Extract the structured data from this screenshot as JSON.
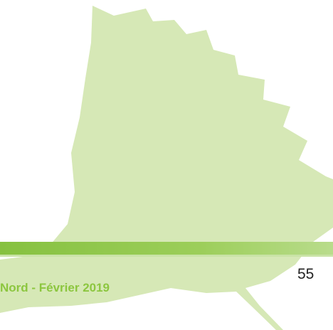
{
  "footer": {
    "text": "Nord - Février 2019",
    "page_number": "55"
  }
}
